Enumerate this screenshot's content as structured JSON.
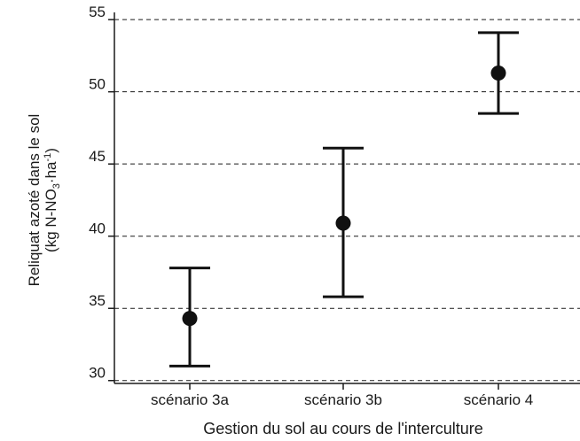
{
  "chart_data": {
    "type": "scatter",
    "categories": [
      "scénario 3a",
      "scénario 3b",
      "scénario 4"
    ],
    "series": [
      {
        "values": [
          34.3,
          40.9,
          51.3
        ],
        "error_low": [
          31.0,
          35.8,
          48.5
        ],
        "error_high": [
          37.8,
          46.1,
          54.1
        ]
      }
    ],
    "xlabel": "Gestion du sol au cours de l'interculture",
    "ylabel": {
      "line1": "Reliquat azoté dans le sol",
      "line2_part1": "(kg N-NO",
      "line2_sub": "3",
      "line2_part2": "·ha",
      "line2_sup": "-1",
      "line2_part3": ")"
    },
    "ylim": [
      29.8,
      55.5
    ],
    "yticks": [
      30,
      35,
      40,
      45,
      50,
      55
    ],
    "grid": "horizontal-dashed",
    "legend": "none",
    "color": "#111111"
  }
}
